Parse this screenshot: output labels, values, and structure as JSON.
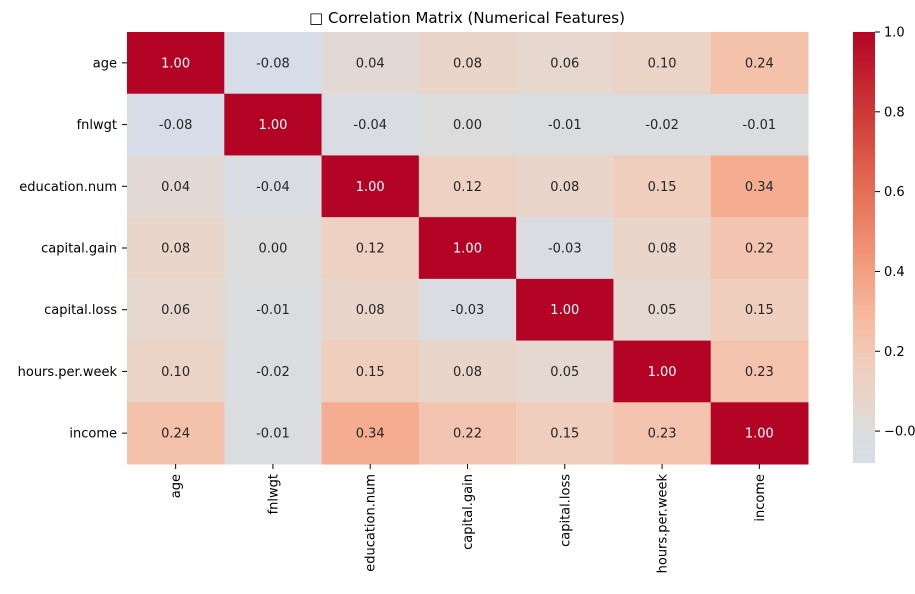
{
  "chart_data": {
    "type": "heatmap",
    "title": "□ Correlation Matrix (Numerical Features)",
    "xlabel": "",
    "ylabel": "",
    "rows": [
      "age",
      "fnlwgt",
      "education.num",
      "capital.gain",
      "capital.loss",
      "hours.per.week",
      "income"
    ],
    "columns": [
      "age",
      "fnlwgt",
      "education.num",
      "capital.gain",
      "capital.loss",
      "hours.per.week",
      "income"
    ],
    "values": [
      [
        1.0,
        -0.08,
        0.04,
        0.08,
        0.06,
        0.1,
        0.24
      ],
      [
        -0.08,
        1.0,
        -0.04,
        0.0,
        -0.01,
        -0.02,
        -0.01
      ],
      [
        0.04,
        -0.04,
        1.0,
        0.12,
        0.08,
        0.15,
        0.34
      ],
      [
        0.08,
        0.0,
        0.12,
        1.0,
        -0.03,
        0.08,
        0.22
      ],
      [
        0.06,
        -0.01,
        0.08,
        -0.03,
        1.0,
        0.05,
        0.15
      ],
      [
        0.1,
        -0.02,
        0.15,
        0.08,
        0.05,
        1.0,
        0.23
      ],
      [
        0.24,
        -0.01,
        0.34,
        0.22,
        0.15,
        0.23,
        1.0
      ]
    ],
    "annotation_format": "0.00",
    "colormap": "coolwarm",
    "colorbar": {
      "min": -0.08,
      "max": 1.0,
      "ticks": [
        -0.0,
        0.2,
        0.4,
        0.6,
        0.8,
        1.0
      ],
      "tick_labels": [
        "−0.0",
        "0.2",
        "0.4",
        "0.6",
        "0.8",
        "1.0"
      ],
      "placement": "right"
    },
    "colors": {
      "low": "#d7dde8",
      "mid": "#dcdcdc",
      "high": "#b40426",
      "text_dark": "#262626",
      "text_light": "#ffffff"
    }
  }
}
